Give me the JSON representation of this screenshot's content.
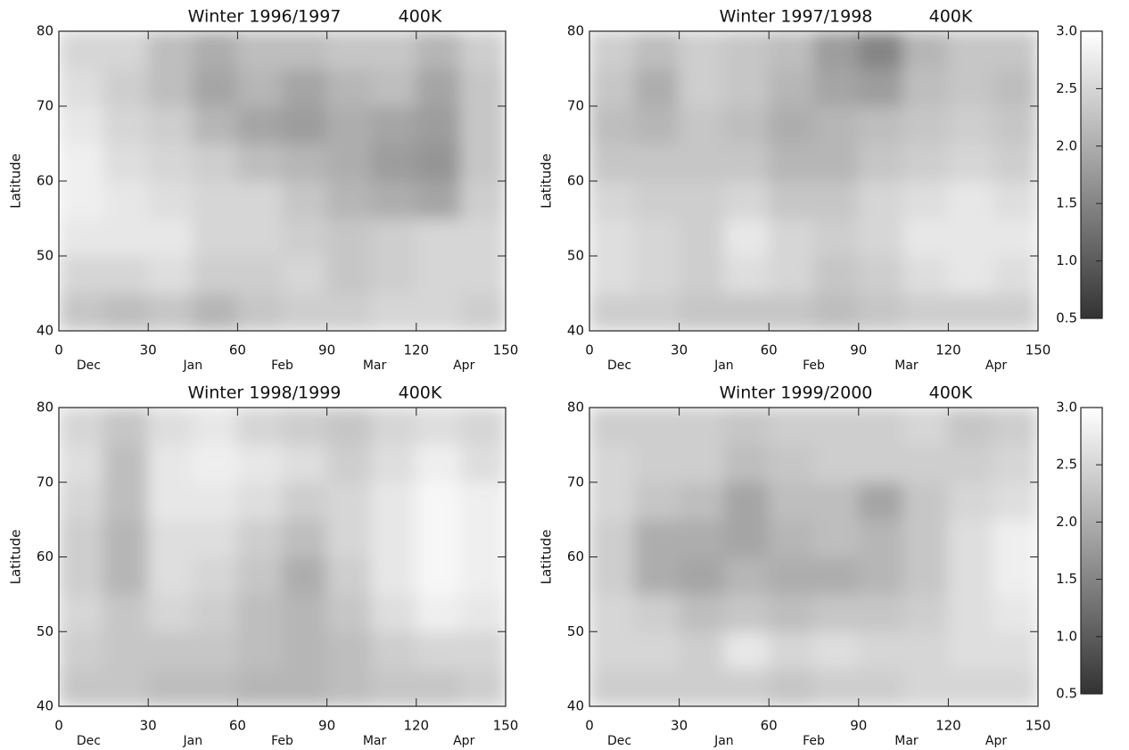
{
  "chart_data": [
    {
      "type": "heatmap",
      "title": "Winter 1996/1997",
      "subtitle": "400K",
      "ylabel": "Latitude",
      "xlim": [
        0,
        150
      ],
      "ylim": [
        40,
        80
      ],
      "xticks": [
        0,
        30,
        60,
        90,
        120,
        150
      ],
      "yticks": [
        40,
        50,
        60,
        70,
        80
      ],
      "month_ticks": [
        {
          "value": 10,
          "label": "Dec"
        },
        {
          "value": 45,
          "label": "Jan"
        },
        {
          "value": 75,
          "label": "Feb"
        },
        {
          "value": 106,
          "label": "Mar"
        },
        {
          "value": 136,
          "label": "Apr"
        }
      ],
      "zlim": [
        0.5,
        3.0
      ],
      "x_bins": [
        0,
        15,
        30,
        45,
        60,
        75,
        90,
        105,
        120,
        135,
        150
      ],
      "y_bins": [
        40,
        45,
        50,
        55,
        60,
        65,
        70,
        75,
        80
      ],
      "z": [
        [
          2.3,
          2.2,
          2.3,
          2.1,
          2.3,
          2.4,
          2.4,
          2.5,
          2.5,
          2.4
        ],
        [
          2.5,
          2.5,
          2.6,
          2.4,
          2.4,
          2.5,
          2.3,
          2.4,
          2.5,
          2.5
        ],
        [
          2.7,
          2.7,
          2.7,
          2.5,
          2.5,
          2.4,
          2.3,
          2.4,
          2.5,
          2.5
        ],
        [
          2.8,
          2.7,
          2.6,
          2.5,
          2.5,
          2.3,
          2.1,
          2.0,
          1.9,
          2.4
        ],
        [
          2.8,
          2.6,
          2.5,
          2.4,
          2.2,
          2.1,
          2.0,
          1.8,
          1.7,
          2.3
        ],
        [
          2.7,
          2.5,
          2.4,
          2.1,
          1.9,
          1.8,
          2.0,
          1.9,
          1.8,
          2.3
        ],
        [
          2.6,
          2.4,
          2.2,
          1.9,
          2.1,
          1.9,
          2.1,
          2.2,
          1.9,
          2.3
        ],
        [
          2.5,
          2.5,
          2.2,
          2.0,
          2.2,
          2.2,
          2.3,
          2.3,
          2.1,
          2.4
        ]
      ]
    },
    {
      "type": "heatmap",
      "title": "Winter 1997/1998",
      "subtitle": "400K",
      "ylabel": "Latitude",
      "xlim": [
        0,
        150
      ],
      "ylim": [
        40,
        80
      ],
      "xticks": [
        0,
        30,
        60,
        90,
        120,
        150
      ],
      "yticks": [
        40,
        50,
        60,
        70,
        80
      ],
      "month_ticks": [
        {
          "value": 10,
          "label": "Dec"
        },
        {
          "value": 45,
          "label": "Jan"
        },
        {
          "value": 75,
          "label": "Feb"
        },
        {
          "value": 106,
          "label": "Mar"
        },
        {
          "value": 136,
          "label": "Apr"
        }
      ],
      "zlim": [
        0.5,
        3.0
      ],
      "x_bins": [
        0,
        15,
        30,
        45,
        60,
        75,
        90,
        105,
        120,
        135,
        150
      ],
      "y_bins": [
        40,
        45,
        50,
        55,
        60,
        65,
        70,
        75,
        80
      ],
      "z": [
        [
          2.4,
          2.4,
          2.3,
          2.3,
          2.3,
          2.2,
          2.3,
          2.4,
          2.4,
          2.4
        ],
        [
          2.6,
          2.5,
          2.4,
          2.6,
          2.5,
          2.3,
          2.4,
          2.6,
          2.7,
          2.6
        ],
        [
          2.6,
          2.5,
          2.4,
          2.7,
          2.5,
          2.4,
          2.5,
          2.7,
          2.7,
          2.7
        ],
        [
          2.5,
          2.4,
          2.4,
          2.5,
          2.3,
          2.3,
          2.5,
          2.6,
          2.7,
          2.6
        ],
        [
          2.3,
          2.3,
          2.3,
          2.3,
          2.1,
          2.1,
          2.3,
          2.4,
          2.5,
          2.4
        ],
        [
          2.2,
          2.1,
          2.3,
          2.2,
          2.0,
          2.1,
          2.2,
          2.3,
          2.4,
          2.3
        ],
        [
          2.3,
          2.0,
          2.4,
          2.3,
          2.1,
          1.9,
          1.8,
          2.2,
          2.3,
          2.2
        ],
        [
          2.4,
          2.2,
          2.4,
          2.3,
          2.2,
          1.8,
          1.5,
          2.1,
          2.3,
          2.3
        ]
      ],
      "colorbar": {
        "ticks": [
          {
            "value": 3,
            "label": "3.0"
          },
          2.5,
          {
            "value": 2,
            "label": "2.0"
          },
          1.5,
          {
            "value": 1,
            "label": "1.0"
          },
          0.5
        ]
      }
    },
    {
      "type": "heatmap",
      "title": "Winter 1998/1999",
      "subtitle": "400K",
      "ylabel": "Latitude",
      "xlim": [
        0,
        150
      ],
      "ylim": [
        40,
        80
      ],
      "xticks": [
        0,
        30,
        60,
        90,
        120,
        150
      ],
      "yticks": [
        40,
        50,
        60,
        70,
        80
      ],
      "month_ticks": [
        {
          "value": 10,
          "label": "Dec"
        },
        {
          "value": 45,
          "label": "Jan"
        },
        {
          "value": 75,
          "label": "Feb"
        },
        {
          "value": 106,
          "label": "Mar"
        },
        {
          "value": 136,
          "label": "Apr"
        }
      ],
      "zlim": [
        0.5,
        3.0
      ],
      "x_bins": [
        0,
        15,
        30,
        45,
        60,
        75,
        90,
        105,
        120,
        135,
        150
      ],
      "y_bins": [
        40,
        45,
        50,
        55,
        60,
        65,
        70,
        75,
        80
      ],
      "z": [
        [
          2.3,
          2.3,
          2.2,
          2.2,
          2.1,
          2.1,
          2.2,
          2.3,
          2.3,
          2.4
        ],
        [
          2.4,
          2.3,
          2.3,
          2.3,
          2.2,
          2.1,
          2.2,
          2.4,
          2.5,
          2.5
        ],
        [
          2.5,
          2.3,
          2.5,
          2.4,
          2.2,
          2.1,
          2.3,
          2.6,
          2.8,
          2.7
        ],
        [
          2.4,
          2.1,
          2.6,
          2.5,
          2.3,
          2.0,
          2.4,
          2.7,
          2.9,
          2.8
        ],
        [
          2.4,
          2.1,
          2.6,
          2.6,
          2.4,
          2.2,
          2.5,
          2.7,
          2.9,
          2.8
        ],
        [
          2.5,
          2.2,
          2.7,
          2.7,
          2.6,
          2.4,
          2.5,
          2.7,
          2.9,
          2.8
        ],
        [
          2.6,
          2.2,
          2.7,
          2.8,
          2.7,
          2.6,
          2.4,
          2.6,
          2.8,
          2.6
        ],
        [
          2.5,
          2.3,
          2.6,
          2.7,
          2.5,
          2.4,
          2.3,
          2.5,
          2.6,
          2.5
        ]
      ]
    },
    {
      "type": "heatmap",
      "title": "Winter 1999/2000",
      "subtitle": "400K",
      "ylabel": "Latitude",
      "xlim": [
        0,
        150
      ],
      "ylim": [
        40,
        80
      ],
      "xticks": [
        0,
        30,
        60,
        90,
        120,
        150
      ],
      "yticks": [
        40,
        50,
        60,
        70,
        80
      ],
      "month_ticks": [
        {
          "value": 10,
          "label": "Dec"
        },
        {
          "value": 45,
          "label": "Jan"
        },
        {
          "value": 75,
          "label": "Feb"
        },
        {
          "value": 106,
          "label": "Mar"
        },
        {
          "value": 136,
          "label": "Apr"
        }
      ],
      "zlim": [
        0.5,
        3.0
      ],
      "x_bins": [
        0,
        15,
        30,
        45,
        60,
        75,
        90,
        105,
        120,
        135,
        150
      ],
      "y_bins": [
        40,
        45,
        50,
        55,
        60,
        65,
        70,
        75,
        80
      ],
      "z": [
        [
          2.4,
          2.4,
          2.4,
          2.4,
          2.3,
          2.4,
          2.4,
          2.5,
          2.5,
          2.5
        ],
        [
          2.5,
          2.5,
          2.4,
          2.7,
          2.5,
          2.6,
          2.5,
          2.5,
          2.6,
          2.6
        ],
        [
          2.5,
          2.4,
          2.2,
          2.3,
          2.2,
          2.3,
          2.3,
          2.4,
          2.6,
          2.7
        ],
        [
          2.4,
          2.0,
          1.9,
          2.1,
          2.0,
          2.0,
          2.1,
          2.3,
          2.6,
          2.8
        ],
        [
          2.4,
          2.0,
          2.0,
          1.9,
          2.1,
          2.2,
          2.1,
          2.3,
          2.6,
          2.8
        ],
        [
          2.5,
          2.3,
          2.2,
          1.9,
          2.2,
          2.2,
          1.9,
          2.3,
          2.5,
          2.6
        ],
        [
          2.5,
          2.4,
          2.4,
          2.2,
          2.3,
          2.4,
          2.4,
          2.4,
          2.4,
          2.5
        ],
        [
          2.4,
          2.4,
          2.4,
          2.3,
          2.4,
          2.4,
          2.4,
          2.5,
          2.3,
          2.4
        ]
      ],
      "colorbar": {
        "ticks": [
          {
            "value": 3,
            "label": "3.0"
          },
          2.5,
          {
            "value": 2,
            "label": "2.0"
          },
          1.5,
          {
            "value": 1,
            "label": "1.0"
          },
          0.5
        ]
      }
    }
  ]
}
